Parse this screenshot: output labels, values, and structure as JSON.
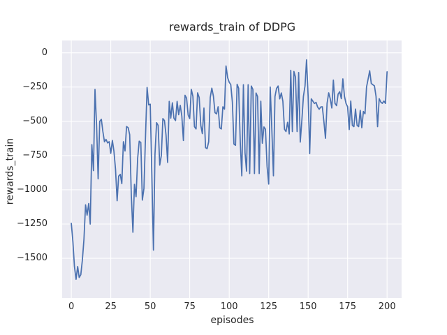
{
  "figure": {
    "title": "rewards_train of DDPG",
    "xlabel": "episodes",
    "ylabel": "rewards_train"
  },
  "axes": {
    "x_tick_labels": [
      "0",
      "25",
      "50",
      "75",
      "100",
      "125",
      "150",
      "175",
      "200"
    ],
    "y_tick_labels": [
      "0",
      "−250",
      "−500",
      "−750",
      "−1000",
      "−1250",
      "−1500"
    ]
  },
  "colors": {
    "figure_bg": "#ffffff",
    "axes_bg": "#eaeaf2",
    "grid": "#ffffff",
    "line": "#4c72b0",
    "text": "#262626"
  },
  "chart_data": {
    "type": "line",
    "title": "rewards_train of DDPG",
    "xlabel": "episodes",
    "ylabel": "rewards_train",
    "series_name": "rewards_train",
    "grid": true,
    "legend": false,
    "x_start": 0,
    "x_step": 1,
    "xlim": [
      -5.8,
      209.2
    ],
    "ylim": [
      -1790,
      90
    ],
    "x_tick_values": [
      0,
      25,
      50,
      75,
      100,
      125,
      150,
      175,
      200
    ],
    "y_tick_values": [
      0,
      -250,
      -500,
      -750,
      -1000,
      -1250,
      -1500
    ],
    "values": [
      -1245,
      -1380,
      -1560,
      -1653,
      -1560,
      -1640,
      -1620,
      -1515,
      -1362,
      -1110,
      -1185,
      -1100,
      -1250,
      -670,
      -860,
      -267,
      -530,
      -920,
      -500,
      -485,
      -575,
      -650,
      -632,
      -658,
      -649,
      -734,
      -640,
      -717,
      -850,
      -1080,
      -900,
      -887,
      -955,
      -649,
      -717,
      -538,
      -547,
      -598,
      -1040,
      -1310,
      -960,
      -1050,
      -770,
      -645,
      -655,
      -1075,
      -990,
      -600,
      -253,
      -380,
      -375,
      -890,
      -1440,
      -740,
      -510,
      -530,
      -820,
      -750,
      -480,
      -495,
      -600,
      -800,
      -355,
      -477,
      -365,
      -477,
      -495,
      -355,
      -452,
      -384,
      -460,
      -640,
      -310,
      -330,
      -454,
      -480,
      -267,
      -318,
      -539,
      -556,
      -292,
      -326,
      -530,
      -590,
      -403,
      -692,
      -700,
      -649,
      -326,
      -258,
      -318,
      -437,
      -446,
      -394,
      -547,
      -556,
      -394,
      -411,
      -96,
      -181,
      -215,
      -232,
      -360,
      -666,
      -675,
      -230,
      -259,
      -652,
      -898,
      -233,
      -730,
      -864,
      -233,
      -881,
      -242,
      -267,
      -881,
      -293,
      -319,
      -881,
      -353,
      -660,
      -541,
      -558,
      -830,
      -958,
      -250,
      -558,
      -898,
      -319,
      -259,
      -242,
      -336,
      -293,
      -353,
      -558,
      -575,
      -507,
      -592,
      -128,
      -575,
      -136,
      -178,
      -575,
      -144,
      -652,
      -500,
      -319,
      -242,
      -51,
      -319,
      -736,
      -336,
      -353,
      -370,
      -362,
      -395,
      -412,
      -395,
      -394,
      -505,
      -624,
      -369,
      -292,
      -335,
      -403,
      -199,
      -369,
      -386,
      -301,
      -284,
      -335,
      -190,
      -318,
      -369,
      -394,
      -560,
      -352,
      -530,
      -539,
      -411,
      -530,
      -539,
      -420,
      -547,
      -428,
      -445,
      -250,
      -190,
      -131,
      -224,
      -233,
      -241,
      -318,
      -539,
      -335,
      -360,
      -369,
      -352,
      -369,
      -139
    ]
  }
}
